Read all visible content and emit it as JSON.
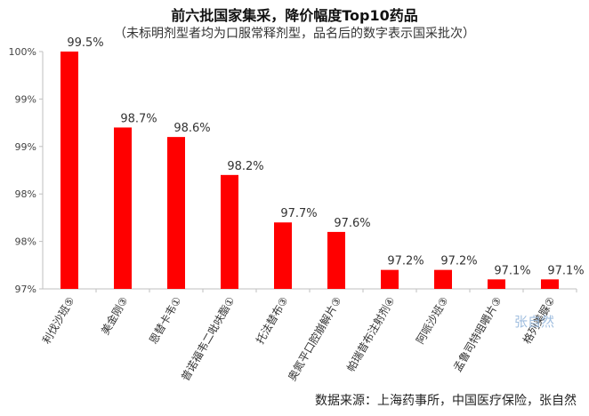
{
  "title": "前六批国家集采，降价幅度Top10药品",
  "subtitle": "（未标明剂型者均为口服常释剂型，品名后的数字表示国采批次）",
  "source": "数据来源：上海药事所，中国医疗保险，张自然",
  "watermark": "张自然",
  "chart_data": {
    "type": "bar",
    "categories": [
      "利伐沙班⑤",
      "美金刚③",
      "恩替卡韦①",
      "普诺福韦二吡呋酯①",
      "托法替布③",
      "奥氮平口腔崩解片③",
      "帕瑞昔布注射剂④",
      "阿哌沙班③",
      "孟鲁司特咀嚼片③",
      "格列美脲②"
    ],
    "values": [
      99.5,
      98.7,
      98.6,
      98.2,
      97.7,
      97.6,
      97.2,
      97.2,
      97.1,
      97.1
    ],
    "data_labels": [
      "99.5%",
      "98.7%",
      "98.6%",
      "98.2%",
      "97.7%",
      "97.6%",
      "97.2%",
      "97.2%",
      "97.1%",
      "97.1%"
    ],
    "y_ticks": [
      "97%",
      "98%",
      "98%",
      "99%",
      "99%",
      "100%"
    ],
    "ylim": [
      97,
      99.5
    ],
    "bar_color": "#ff0000",
    "grid": false
  }
}
